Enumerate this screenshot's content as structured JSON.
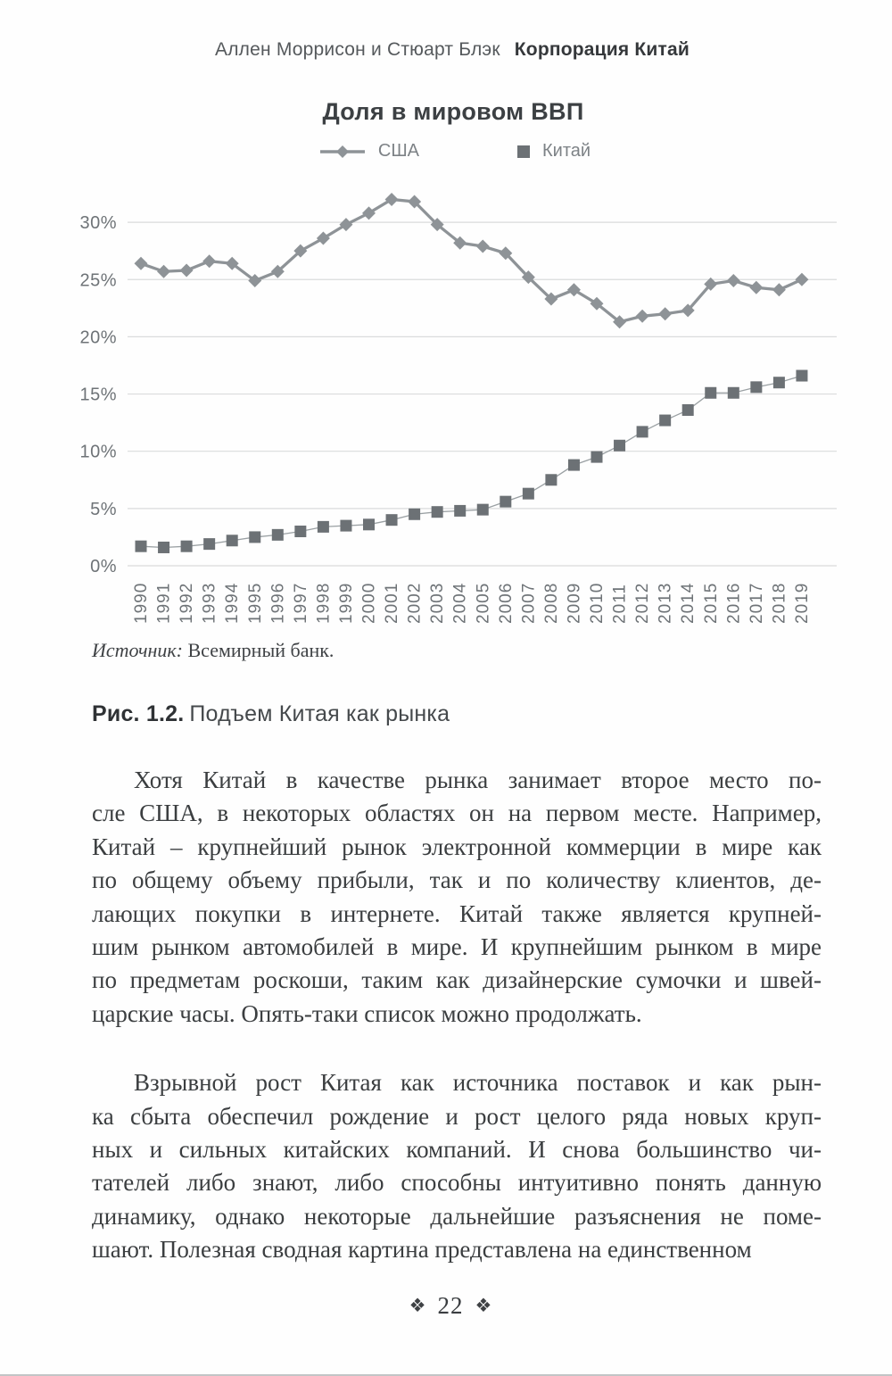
{
  "header": {
    "authors": "Аллен Моррисон и Стюарт Блэк",
    "book_title": "Корпорация Китай"
  },
  "chart_data": {
    "type": "line",
    "title": "Доля в мировом ВВП",
    "categories": [
      "1990",
      "1991",
      "1992",
      "1993",
      "1994",
      "1995",
      "1996",
      "1997",
      "1998",
      "1999",
      "2000",
      "2001",
      "2002",
      "2003",
      "2004",
      "2005",
      "2006",
      "2007",
      "2008",
      "2009",
      "2010",
      "2011",
      "2012",
      "2013",
      "2014",
      "2015",
      "2016",
      "2017",
      "2018",
      "2019"
    ],
    "series": [
      {
        "name": "США",
        "marker": "diamond",
        "color": "#8e9397",
        "line_color": "#8e9397",
        "values": [
          26.4,
          25.7,
          25.8,
          26.6,
          26.4,
          24.9,
          25.7,
          27.5,
          28.6,
          29.8,
          30.8,
          32.0,
          31.8,
          29.8,
          28.2,
          27.9,
          27.3,
          25.2,
          23.3,
          24.1,
          22.9,
          21.3,
          21.8,
          22.0,
          22.3,
          24.6,
          24.9,
          24.3,
          24.1,
          25.0
        ]
      },
      {
        "name": "Китай",
        "marker": "square",
        "color": "#6c7175",
        "line_color": "#9aa0a3",
        "values": [
          1.7,
          1.6,
          1.7,
          1.9,
          2.2,
          2.5,
          2.7,
          3.0,
          3.4,
          3.5,
          3.6,
          4.0,
          4.5,
          4.7,
          4.8,
          4.9,
          5.6,
          6.3,
          7.5,
          8.8,
          9.5,
          10.5,
          11.7,
          12.7,
          13.6,
          15.1,
          15.1,
          15.6,
          16.0,
          16.6
        ]
      }
    ],
    "xlabel": "",
    "ylabel": "",
    "ylim": [
      0,
      33
    ],
    "yticks": [
      0,
      5,
      10,
      15,
      20,
      25,
      30
    ],
    "ytick_suffix": "%",
    "grid": true,
    "legend_position": "top"
  },
  "colors": {
    "grid": "#dadbdc",
    "axis_text": "#6e7377",
    "legend_text": "#7d8286",
    "usa_series": "#8e9397",
    "china_series": "#6c7175",
    "body_text": "#3b3e40"
  },
  "source": {
    "label": "Источник:",
    "text": "Всемирный банк."
  },
  "caption": {
    "label": "Рис. 1.2.",
    "text": "Подъем Китая как рынка"
  },
  "body": {
    "paragraphs": [
      {
        "lines": [
          "Хотя Китай в качестве рынка занимает второе место по-",
          "сле США, в некоторых областях он на первом месте. Например,",
          "Китай – крупнейший рынок электронной коммерции в мире как",
          "по общему объему прибыли, так и по количеству клиентов, де-",
          "лающих покупки в интернете. Китай также является крупней-",
          "шим рынком автомобилей в мире. И крупнейшим рынком в мире",
          "по предметам роскоши, таким как дизайнерские сумочки и швей-",
          "царские часы. Опять-таки список можно продолжать."
        ]
      },
      {
        "lines": [
          "Взрывной рост Китая как источника поставок и как рын-",
          "ка сбыта обеспечил рождение и рост целого ряда новых круп-",
          "ных и сильных китайских компаний. И снова большинство чи-",
          "тателей либо знают, либо способны интуитивно понять данную",
          "динамику, однако некоторые дальнейшие разъяснения не поме-",
          "шают. Полезная сводная картина представлена на единственном"
        ]
      }
    ]
  },
  "footer": {
    "page_number": "22",
    "ornament": "❖"
  }
}
